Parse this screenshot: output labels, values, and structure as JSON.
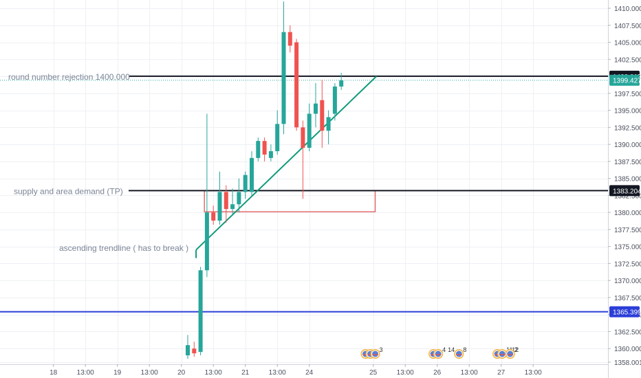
{
  "chart_data": {
    "type": "candlestick",
    "y_axis": {
      "ylim": [
        1358.5,
        1411.5
      ],
      "ticks": [
        "1410.000",
        "1407.500",
        "1405.000",
        "1402.500",
        "1400.000",
        "1397.500",
        "1395.000",
        "1392.500",
        "1390.000",
        "1387.500",
        "1385.000",
        "1382.500",
        "1380.000",
        "1377.500",
        "1375.000",
        "1372.500",
        "1370.000",
        "1367.500",
        "1365.000",
        "1362.500",
        "1360.000",
        "1358.001"
      ]
    },
    "x_axis": {
      "ticks": [
        {
          "label": "18",
          "bar": -21
        },
        {
          "label": "13:00",
          "bar": -16
        },
        {
          "label": "19",
          "bar": -11
        },
        {
          "label": "13:00",
          "bar": -6
        },
        {
          "label": "20",
          "bar": -1
        },
        {
          "label": "13:00",
          "bar": 4
        },
        {
          "label": "21",
          "bar": 9
        },
        {
          "label": "13:00",
          "bar": 14
        },
        {
          "label": "24",
          "bar": 19
        },
        {
          "label": "25",
          "bar": 29
        },
        {
          "label": "13:00",
          "bar": 34
        },
        {
          "label": "26",
          "bar": 39
        },
        {
          "label": "13:00",
          "bar": 44
        },
        {
          "label": "27",
          "bar": 49
        },
        {
          "label": "13:00",
          "bar": 54
        }
      ]
    },
    "candles": [
      {
        "o": 1359.0,
        "h": 1362.0,
        "l": 1358.5,
        "c": 1360.5
      },
      {
        "o": 1360.0,
        "h": 1361.0,
        "l": 1358.8,
        "c": 1359.3
      },
      {
        "o": 1359.5,
        "h": 1372.0,
        "l": 1359.0,
        "c": 1371.5
      },
      {
        "o": 1371.5,
        "h": 1394.5,
        "l": 1370.5,
        "c": 1380.0
      },
      {
        "o": 1380.0,
        "h": 1381.0,
        "l": 1378.2,
        "c": 1378.8
      },
      {
        "o": 1378.8,
        "h": 1386.0,
        "l": 1378.2,
        "c": 1383.0
      },
      {
        "o": 1383.0,
        "h": 1384.0,
        "l": 1378.5,
        "c": 1380.5
      },
      {
        "o": 1380.5,
        "h": 1383.5,
        "l": 1379.5,
        "c": 1381.2
      },
      {
        "o": 1381.2,
        "h": 1385.0,
        "l": 1380.0,
        "c": 1383.0
      },
      {
        "o": 1383.0,
        "h": 1386.0,
        "l": 1382.0,
        "c": 1385.5
      },
      {
        "o": 1383.0,
        "h": 1389.0,
        "l": 1382.5,
        "c": 1388.0
      },
      {
        "o": 1388.0,
        "h": 1391.0,
        "l": 1387.5,
        "c": 1390.5
      },
      {
        "o": 1390.5,
        "h": 1391.0,
        "l": 1387.5,
        "c": 1388.5
      },
      {
        "o": 1388.0,
        "h": 1390.0,
        "l": 1387.5,
        "c": 1389.0
      },
      {
        "o": 1389.0,
        "h": 1395.0,
        "l": 1388.5,
        "c": 1393.0
      },
      {
        "o": 1393.0,
        "h": 1411.0,
        "l": 1391.5,
        "c": 1406.5
      },
      {
        "o": 1406.5,
        "h": 1407.5,
        "l": 1403.5,
        "c": 1404.5
      },
      {
        "o": 1405.0,
        "h": 1405.5,
        "l": 1392.0,
        "c": 1392.5
      },
      {
        "o": 1392.5,
        "h": 1393.5,
        "l": 1382.0,
        "c": 1389.5
      },
      {
        "o": 1389.5,
        "h": 1396.0,
        "l": 1389.0,
        "c": 1394.5
      },
      {
        "o": 1394.5,
        "h": 1399.0,
        "l": 1392.5,
        "c": 1396.0
      },
      {
        "o": 1396.5,
        "h": 1399.5,
        "l": 1389.5,
        "c": 1392.0
      },
      {
        "o": 1392.0,
        "h": 1395.0,
        "l": 1390.0,
        "c": 1394.0
      },
      {
        "o": 1394.5,
        "h": 1399.0,
        "l": 1393.5,
        "c": 1398.5
      },
      {
        "o": 1398.5,
        "h": 1400.5,
        "l": 1398.0,
        "c": 1399.4
      }
    ],
    "horizontal_levels": [
      {
        "price": 1400.017,
        "label": "1400.017",
        "color": "#131722",
        "text": "round number rejection 1400.000"
      },
      {
        "price": 1383.204,
        "label": "1383.204",
        "color": "#131722",
        "text": "supply and area demand (TP)"
      },
      {
        "price": 1365.399,
        "label": "1365.399",
        "color": "#2b3ed8",
        "text": ""
      }
    ],
    "current_price": {
      "price": 1399.427,
      "label": "1399.427",
      "color": "#26a69a"
    },
    "trendline": {
      "from": {
        "bar": 1.3,
        "price": 1374.5
      },
      "to": {
        "bar": 29.5,
        "price": 1400.0
      },
      "color": "#109a7a"
    },
    "trendline_annotation": "ascending trendline ( has to break )",
    "zone": {
      "bar_from": 2.6,
      "bar_to": 29.3,
      "price_top": 1383.2,
      "price_bottom": 1380.1,
      "color": "#e05757"
    },
    "event_markers": [
      {
        "bar": 27.8,
        "count": "3",
        "icons": 3
      },
      {
        "bar": 38.4,
        "count": "4",
        "count2": "14",
        "icons": 2
      },
      {
        "bar": 42.4,
        "count": "8",
        "icons": 1
      },
      {
        "bar": 48.4,
        "count": "11",
        "count2": "12",
        "icons": 2
      },
      {
        "bar": 50.4,
        "count": "2",
        "icons": 1
      }
    ],
    "colors": {
      "up": "#26a69a",
      "down": "#ef5350",
      "grid": "#eef0f4"
    }
  }
}
